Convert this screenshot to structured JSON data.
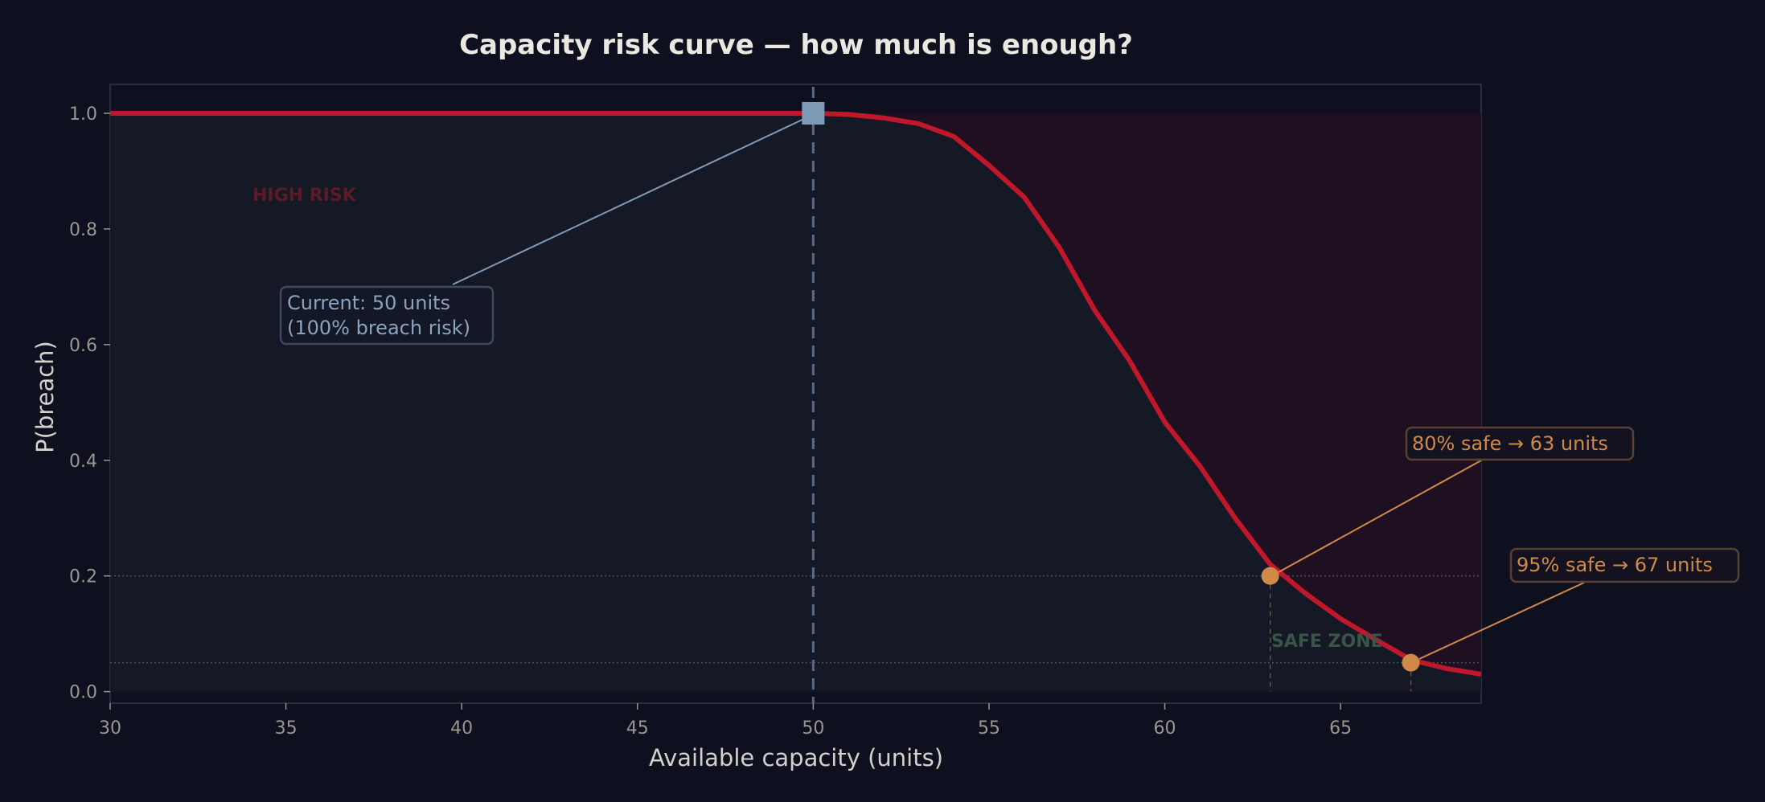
{
  "chart_data": {
    "type": "line",
    "title": "Capacity risk curve — how much is enough?",
    "xlabel": "Available capacity (units)",
    "ylabel": "P(breach)",
    "xlim": [
      30,
      69
    ],
    "ylim": [
      -0.02,
      1.05
    ],
    "xticks": [
      30,
      35,
      40,
      45,
      50,
      55,
      60,
      65
    ],
    "yticks": [
      0.0,
      0.2,
      0.4,
      0.6,
      0.8,
      1.0
    ],
    "grid": false,
    "series": [
      {
        "x": [
          30,
          31,
          32,
          33,
          34,
          35,
          36,
          37,
          38,
          39,
          40,
          41,
          42,
          43,
          44,
          45,
          46,
          47,
          48,
          49,
          50,
          51,
          52,
          53,
          54,
          55,
          56,
          57,
          58,
          59,
          60,
          61,
          62,
          63,
          64,
          65,
          66,
          67,
          68,
          69
        ],
        "y": [
          1,
          1,
          1,
          1,
          1,
          1,
          1,
          1,
          1,
          1,
          1,
          1,
          1,
          1,
          1,
          1,
          1,
          1,
          1,
          1,
          1,
          0.998,
          0.992,
          0.982,
          0.96,
          0.91,
          0.855,
          0.768,
          0.66,
          0.572,
          0.466,
          0.39,
          0.3,
          0.22,
          0.17,
          0.126,
          0.09,
          0.055,
          0.04,
          0.03
        ],
        "color": "#c0182a"
      }
    ],
    "reference_lines": {
      "current_x": 50,
      "thresholds_y": [
        0.2,
        0.05
      ]
    },
    "markers": [
      {
        "x": 50,
        "y": 1.0,
        "shape": "square",
        "color": "#7f9bb8"
      },
      {
        "x": 63,
        "y": 0.2,
        "shape": "circle",
        "color": "#d08a48"
      },
      {
        "x": 67,
        "y": 0.05,
        "shape": "circle",
        "color": "#d08a48"
      }
    ],
    "annotations": {
      "current_line1": "Current: 50 units",
      "current_line2": "(100% breach risk)",
      "safe80": "80% safe → 63 units",
      "safe95": "95% safe → 67 units",
      "high_risk": "HIGH RISK",
      "safe_zone": "SAFE ZONE"
    },
    "colors": {
      "background": "#0e1020",
      "under_curve_fill": "#151925",
      "risk_fill": "#1e1020",
      "curve": "#c0182a",
      "current": "#7f9bb8",
      "target": "#d08a48",
      "high_risk_text": "#5a1a26",
      "safe_zone_text": "#3a5448"
    }
  }
}
